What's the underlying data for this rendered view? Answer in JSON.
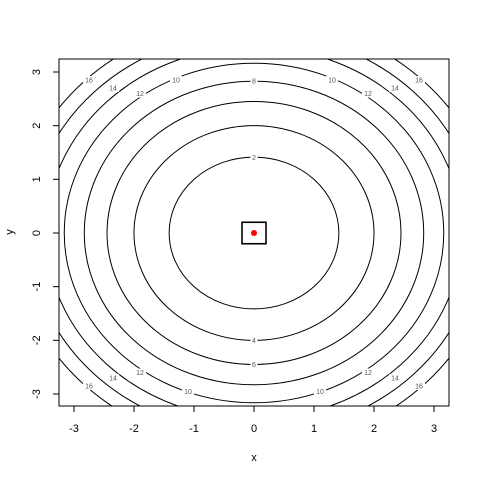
{
  "chart_data": {
    "type": "contour",
    "function": "x^2 + y^2",
    "xlabel": "x",
    "ylabel": "y",
    "xlim": [
      -3,
      3
    ],
    "ylim": [
      -3,
      3
    ],
    "x_ticks": [
      -3,
      -2,
      -1,
      0,
      1,
      2,
      3
    ],
    "y_ticks": [
      -3,
      -2,
      -1,
      0,
      1,
      2,
      3
    ],
    "x_tick_labels": [
      "-3",
      "-2",
      "-1",
      "0",
      "1",
      "2",
      "3"
    ],
    "y_tick_labels": [
      "-3",
      "-2",
      "-1",
      "0",
      "1",
      "2",
      "3"
    ],
    "levels": [
      2,
      4,
      6,
      8,
      10,
      12,
      14,
      16
    ],
    "level_labels": [
      "2",
      "4",
      "6",
      "8",
      "10",
      "12",
      "14",
      "16"
    ],
    "contour_labels": [
      {
        "level": 2,
        "text": "2",
        "x": 0.0,
        "y": 1.41
      },
      {
        "level": 4,
        "text": "4",
        "x": 0.0,
        "y": -2.0
      },
      {
        "level": 6,
        "text": "6",
        "x": 0.0,
        "y": -2.45
      },
      {
        "level": 8,
        "text": "8",
        "x": 0.0,
        "y": 2.83
      },
      {
        "level": 10,
        "text": "10",
        "x": -1.3,
        "y": 2.85
      },
      {
        "level": 10,
        "text": "10",
        "x": 1.3,
        "y": 2.85
      },
      {
        "level": 10,
        "text": "10",
        "x": -1.1,
        "y": -2.95
      },
      {
        "level": 10,
        "text": "10",
        "x": 1.1,
        "y": -2.95
      },
      {
        "level": 12,
        "text": "12",
        "x": -1.9,
        "y": 2.6
      },
      {
        "level": 12,
        "text": "12",
        "x": 1.9,
        "y": 2.6
      },
      {
        "level": 12,
        "text": "12",
        "x": -1.9,
        "y": -2.6
      },
      {
        "level": 12,
        "text": "12",
        "x": 1.9,
        "y": -2.6
      },
      {
        "level": 14,
        "text": "14",
        "x": -2.35,
        "y": 2.7
      },
      {
        "level": 14,
        "text": "14",
        "x": 2.35,
        "y": 2.7
      },
      {
        "level": 14,
        "text": "14",
        "x": -2.35,
        "y": -2.7
      },
      {
        "level": 14,
        "text": "14",
        "x": 2.35,
        "y": -2.7
      },
      {
        "level": 16,
        "text": "16",
        "x": -2.75,
        "y": 2.85
      },
      {
        "level": 16,
        "text": "16",
        "x": 2.75,
        "y": 2.85
      },
      {
        "level": 16,
        "text": "16",
        "x": -2.75,
        "y": -2.85
      },
      {
        "level": 16,
        "text": "16",
        "x": 2.75,
        "y": -2.85
      }
    ],
    "marker_box": {
      "x": [
        -0.2,
        0.2
      ],
      "y": [
        -0.2,
        0.2
      ],
      "color": "#000000"
    },
    "point": {
      "x": 0,
      "y": 0,
      "color": "#ff0000"
    },
    "grid": false,
    "line_color": "#000000"
  }
}
